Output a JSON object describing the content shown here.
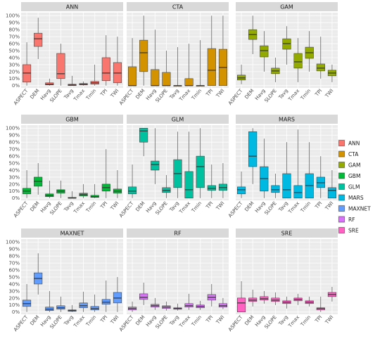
{
  "chart_data": {
    "type": "boxplot",
    "facets": [
      "ANN",
      "CTA",
      "GAM",
      "GBM",
      "GLM",
      "MARS",
      "MAXNET",
      "RF",
      "SRE"
    ],
    "categories": [
      "ASPECT",
      "DEM",
      "Havg",
      "SLOPE",
      "Tavg",
      "Tmax",
      "Tmin",
      "TPI",
      "TWI"
    ],
    "y_ticks": [
      "0%",
      "10%",
      "20%",
      "30%",
      "40%",
      "50%",
      "60%",
      "70%",
      "80%",
      "90%",
      "100%"
    ],
    "ylim": [
      0,
      100
    ],
    "legend": {
      "placement": "right",
      "entries": [
        {
          "name": "ANN",
          "color": "#F8766D"
        },
        {
          "name": "CTA",
          "color": "#D39200"
        },
        {
          "name": "GAM",
          "color": "#93AA00"
        },
        {
          "name": "GBM",
          "color": "#00BA38"
        },
        {
          "name": "GLM",
          "color": "#00C19F"
        },
        {
          "name": "MARS",
          "color": "#00B9E3"
        },
        {
          "name": "MAXNET",
          "color": "#619CFF"
        },
        {
          "name": "RF",
          "color": "#DB72FB"
        },
        {
          "name": "SRE",
          "color": "#FF61C3"
        }
      ]
    },
    "panels": [
      {
        "name": "ANN",
        "color": "#F8766D",
        "boxes": [
          [
            0,
            5,
            18,
            30,
            62
          ],
          [
            38,
            56,
            67,
            75,
            97
          ],
          [
            0,
            1,
            2,
            4,
            10
          ],
          [
            0,
            10,
            17,
            46,
            60
          ],
          [
            0,
            0,
            1,
            2,
            14
          ],
          [
            0,
            1,
            2,
            3,
            6
          ],
          [
            0,
            2,
            4,
            6,
            30
          ],
          [
            0,
            7,
            18,
            40,
            72
          ],
          [
            0,
            4,
            18,
            33,
            70
          ]
        ]
      },
      {
        "name": "CTA",
        "color": "#D39200",
        "boxes": [
          [
            0,
            0,
            0,
            27,
            68
          ],
          [
            0,
            20,
            47,
            65,
            100
          ],
          [
            0,
            0,
            0,
            23,
            80
          ],
          [
            0,
            0,
            0,
            19,
            50
          ],
          [
            0,
            0,
            0,
            0,
            55
          ],
          [
            0,
            0,
            0,
            10,
            60
          ],
          [
            0,
            0,
            0,
            0,
            65
          ],
          [
            0,
            0,
            22,
            53,
            100
          ],
          [
            0,
            0,
            26,
            52,
            100
          ]
        ]
      },
      {
        "name": "GAM",
        "color": "#93AA00",
        "boxes": [
          [
            2,
            8,
            11,
            15,
            30
          ],
          [
            45,
            66,
            73,
            80,
            100
          ],
          [
            20,
            41,
            50,
            57,
            78
          ],
          [
            5,
            17,
            21,
            25,
            40
          ],
          [
            30,
            52,
            60,
            67,
            85
          ],
          [
            5,
            25,
            34,
            46,
            68
          ],
          [
            20,
            39,
            47,
            55,
            78
          ],
          [
            10,
            21,
            25,
            31,
            70
          ],
          [
            5,
            14,
            18,
            22,
            30
          ]
        ]
      },
      {
        "name": "GBM",
        "color": "#00BA38",
        "boxes": [
          [
            0,
            6,
            10,
            14,
            40
          ],
          [
            5,
            17,
            24,
            30,
            50
          ],
          [
            0,
            2,
            4,
            6,
            25
          ],
          [
            0,
            7,
            10,
            12,
            25
          ],
          [
            0,
            0,
            0,
            1,
            10
          ],
          [
            0,
            3,
            5,
            7,
            20
          ],
          [
            0,
            1,
            2,
            4,
            20
          ],
          [
            0,
            10,
            15,
            20,
            70
          ],
          [
            0,
            7,
            10,
            13,
            40
          ]
        ]
      },
      {
        "name": "GLM",
        "color": "#00C19F",
        "boxes": [
          [
            0,
            6,
            10,
            16,
            48
          ],
          [
            60,
            80,
            96,
            100,
            100
          ],
          [
            20,
            40,
            48,
            53,
            100
          ],
          [
            0,
            8,
            11,
            15,
            33
          ],
          [
            0,
            15,
            35,
            55,
            95
          ],
          [
            0,
            0,
            12,
            38,
            95
          ],
          [
            0,
            15,
            45,
            60,
            100
          ],
          [
            0,
            11,
            14,
            18,
            48
          ],
          [
            0,
            11,
            15,
            20,
            50
          ]
        ]
      },
      {
        "name": "MARS",
        "color": "#00B9E3",
        "boxes": [
          [
            0,
            6,
            12,
            16,
            38
          ],
          [
            20,
            45,
            60,
            95,
            100
          ],
          [
            0,
            10,
            28,
            45,
            85
          ],
          [
            0,
            8,
            12,
            18,
            35
          ],
          [
            0,
            0,
            12,
            35,
            80
          ],
          [
            0,
            0,
            8,
            18,
            98
          ],
          [
            0,
            0,
            18,
            35,
            80
          ],
          [
            0,
            15,
            22,
            30,
            60
          ],
          [
            0,
            0,
            11,
            15,
            40
          ]
        ]
      },
      {
        "name": "MAXNET",
        "color": "#619CFF",
        "boxes": [
          [
            0,
            8,
            12,
            17,
            40
          ],
          [
            25,
            40,
            48,
            56,
            84
          ],
          [
            0,
            2,
            4,
            7,
            30
          ],
          [
            0,
            4,
            6,
            9,
            22
          ],
          [
            0,
            1,
            2,
            3,
            10
          ],
          [
            0,
            6,
            9,
            13,
            29
          ],
          [
            0,
            3,
            5,
            8,
            25
          ],
          [
            0,
            11,
            14,
            18,
            45
          ],
          [
            0,
            13,
            20,
            28,
            50
          ]
        ]
      },
      {
        "name": "RF",
        "color": "#DB72FB",
        "boxes": [
          [
            0,
            3,
            5,
            7,
            15
          ],
          [
            10,
            18,
            21,
            26,
            42
          ],
          [
            3,
            7,
            9,
            11,
            20
          ],
          [
            2,
            5,
            7,
            9,
            15
          ],
          [
            2,
            4,
            5,
            6,
            12
          ],
          [
            3,
            7,
            9,
            12,
            26
          ],
          [
            3,
            6,
            8,
            10,
            16
          ],
          [
            8,
            17,
            21,
            25,
            40
          ],
          [
            4,
            7,
            9,
            12,
            20
          ]
        ]
      },
      {
        "name": "SRE",
        "color": "#FF61C3",
        "boxes": [
          [
            0,
            0,
            13,
            20,
            44
          ],
          [
            8,
            15,
            17,
            20,
            32
          ],
          [
            12,
            17,
            19,
            22,
            30
          ],
          [
            10,
            15,
            17,
            20,
            28
          ],
          [
            5,
            12,
            14,
            16,
            22
          ],
          [
            10,
            16,
            18,
            20,
            26
          ],
          [
            8,
            12,
            14,
            16,
            22
          ],
          [
            0,
            3,
            5,
            6,
            22
          ],
          [
            15,
            22,
            25,
            28,
            36
          ]
        ]
      }
    ]
  }
}
